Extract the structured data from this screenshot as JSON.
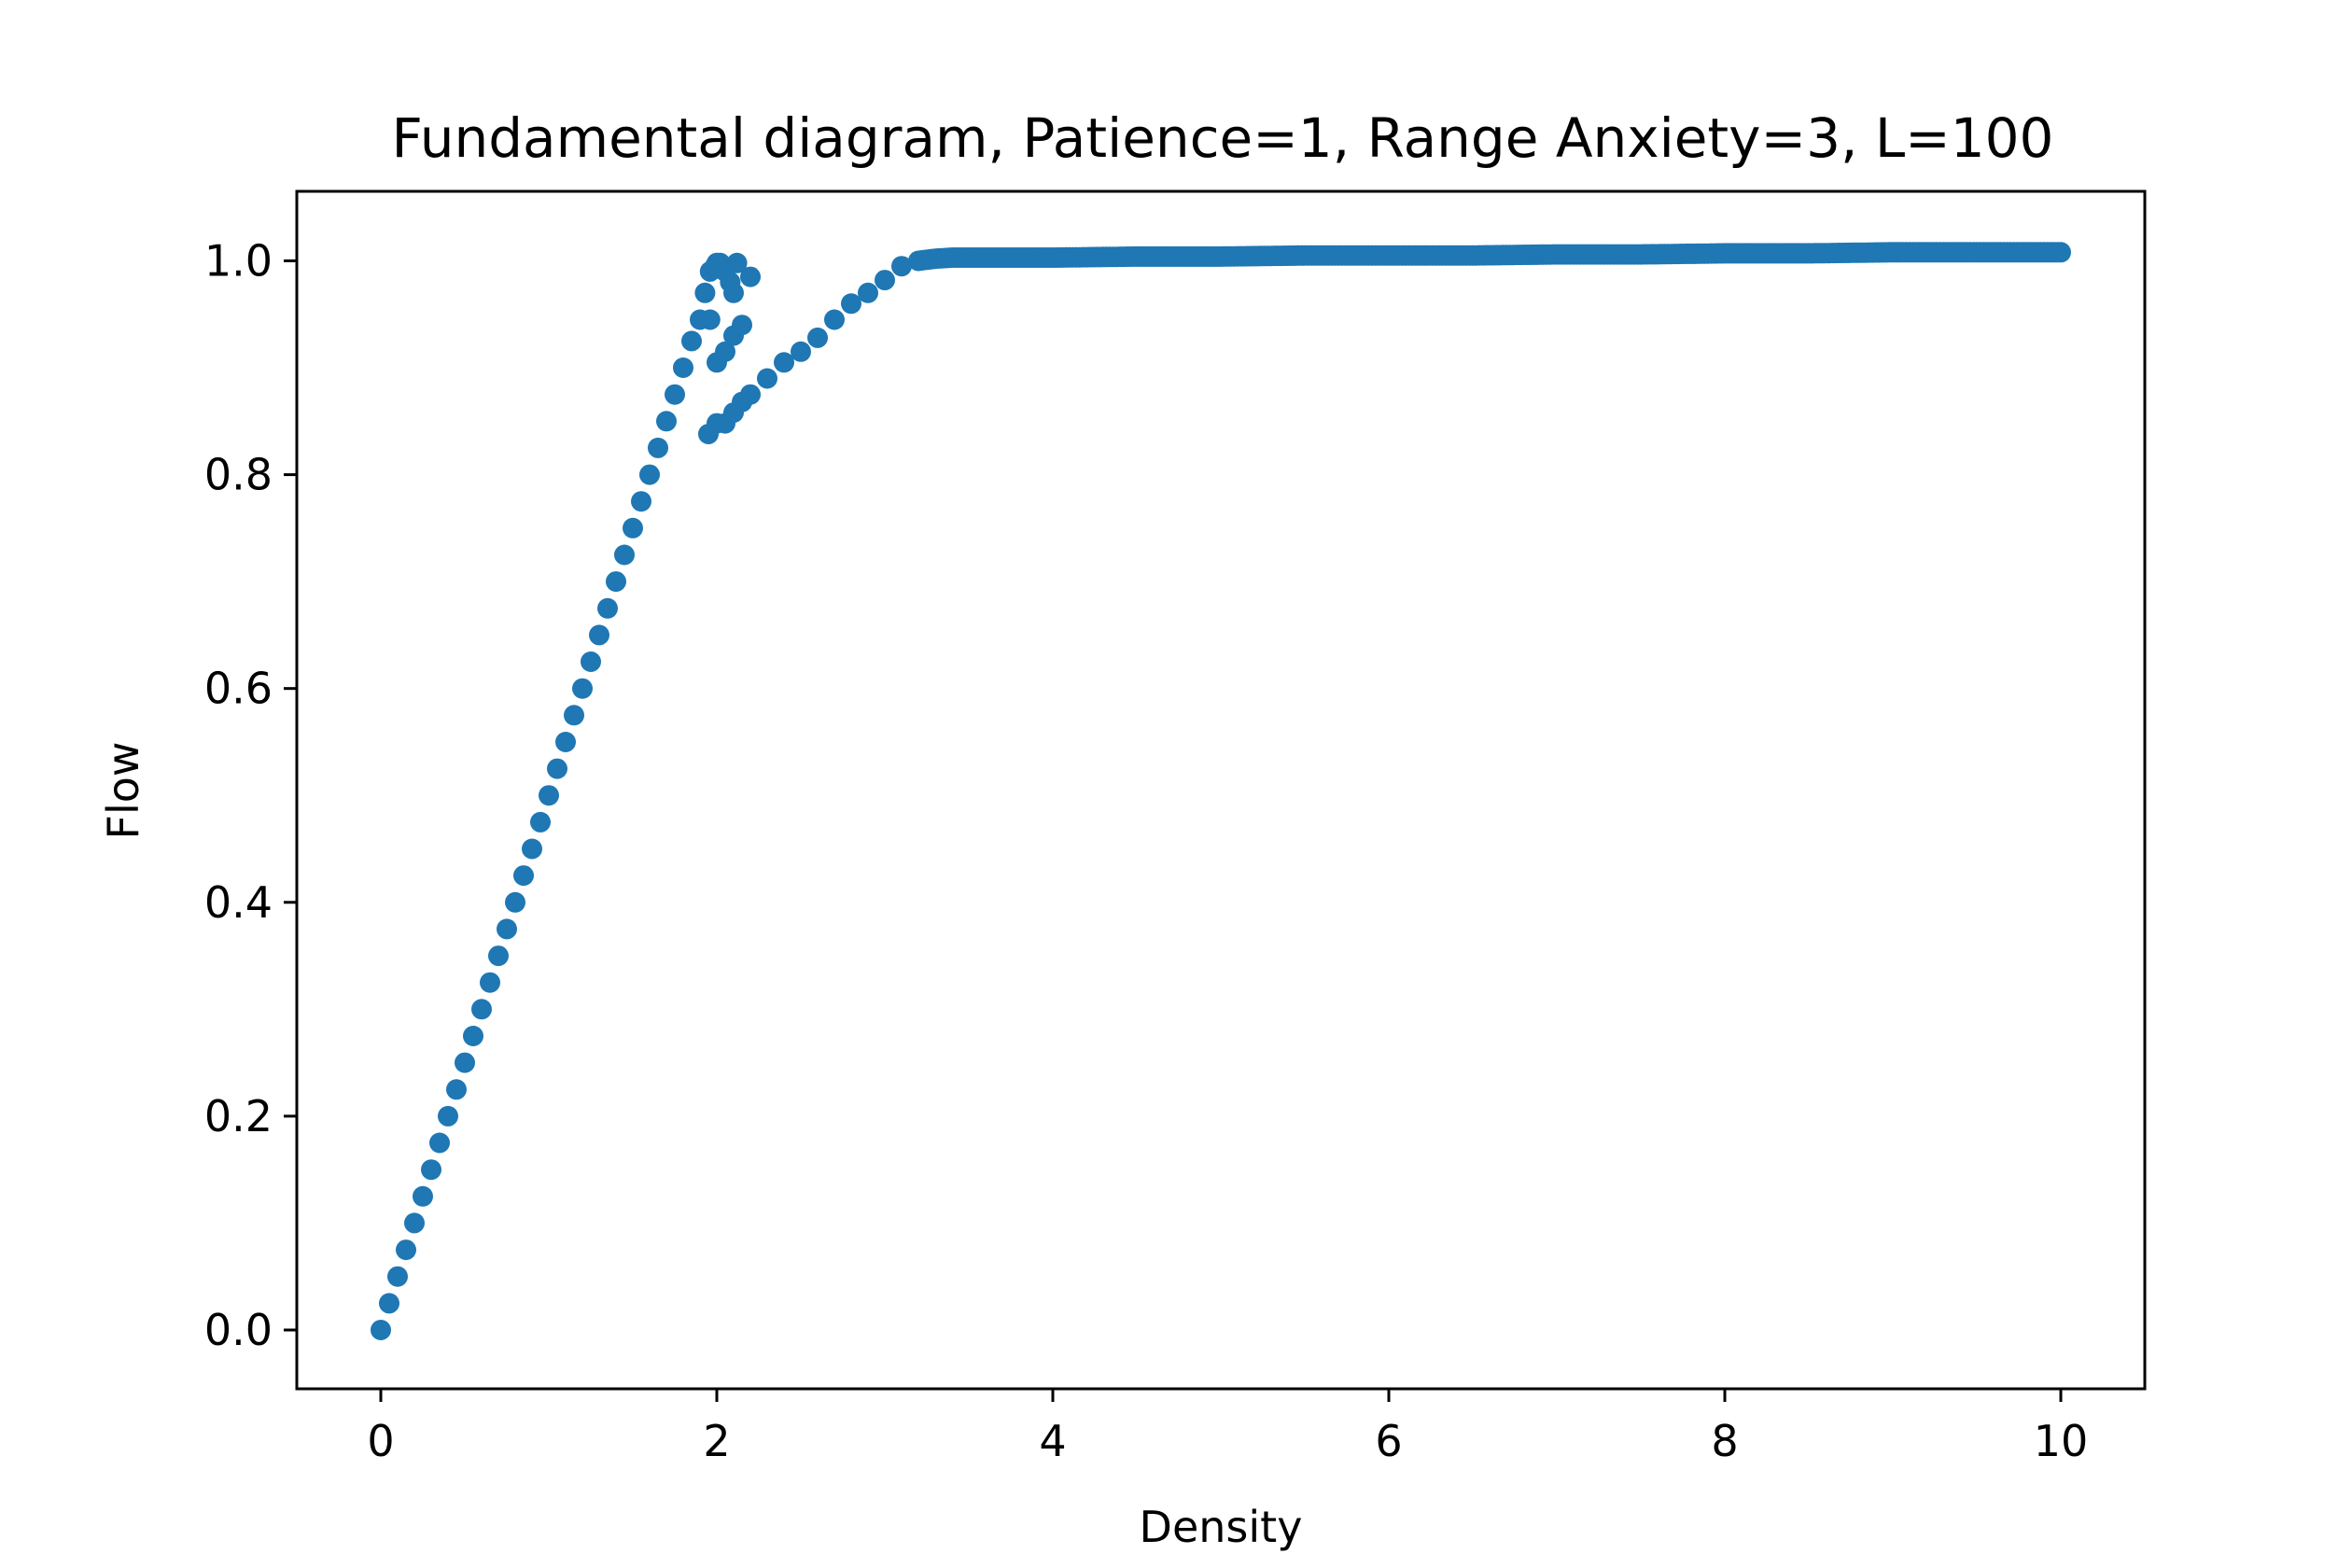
{
  "chart_data": {
    "type": "scatter",
    "title": "Fundamental diagram, Patience=1, Range Anxiety=3, L=100",
    "xlabel": "Density",
    "ylabel": "Flow",
    "xlim": [
      -0.5,
      10.5
    ],
    "ylim": [
      -0.055,
      1.065
    ],
    "xticks": [
      0,
      2,
      4,
      6,
      8,
      10
    ],
    "xtick_labels": [
      "0",
      "2",
      "4",
      "6",
      "8",
      "10"
    ],
    "yticks": [
      0.0,
      0.2,
      0.4,
      0.6,
      0.8,
      1.0
    ],
    "ytick_labels": [
      "0.0",
      "0.2",
      "0.4",
      "0.6",
      "0.8",
      "1.0"
    ],
    "grid": false,
    "color": "#1f77b4",
    "series": [
      {
        "x": [
          0,
          0.05,
          0.1,
          0.15,
          0.2,
          0.25,
          0.3,
          0.35,
          0.4,
          0.45,
          0.5,
          0.55,
          0.6,
          0.65,
          0.7,
          0.75,
          0.8,
          0.85,
          0.9,
          0.95,
          1.0,
          1.05,
          1.1,
          1.15,
          1.2,
          1.25,
          1.3,
          1.35,
          1.4,
          1.45,
          1.5,
          1.55,
          1.6,
          1.65,
          1.7,
          1.75,
          1.8,
          1.85,
          1.9,
          1.93,
          1.96,
          1.99,
          2.0,
          2.02,
          2.05,
          2.08,
          2.1,
          2.12,
          2.2,
          1.96,
          2.0,
          2.05,
          2.1,
          2.15,
          1.95,
          2.0,
          2.05,
          2.1,
          2.15,
          2.2,
          2.3,
          2.4,
          2.5,
          2.6,
          2.7,
          2.8,
          2.9,
          3.0,
          3.1,
          3.2,
          3.3,
          3.4,
          3.6,
          3.8,
          4.0,
          4.5,
          5.0,
          5.5,
          6.0,
          6.5,
          7.0,
          7.5,
          8.0,
          8.5,
          9.0,
          9.5,
          10.0
        ],
        "y": [
          0.0,
          0.025,
          0.05,
          0.075,
          0.1,
          0.125,
          0.15,
          0.175,
          0.2,
          0.225,
          0.25,
          0.275,
          0.3,
          0.325,
          0.35,
          0.375,
          0.4,
          0.425,
          0.45,
          0.475,
          0.5,
          0.525,
          0.55,
          0.575,
          0.6,
          0.625,
          0.65,
          0.675,
          0.7,
          0.725,
          0.75,
          0.775,
          0.8,
          0.825,
          0.85,
          0.875,
          0.9,
          0.925,
          0.945,
          0.97,
          0.99,
          0.995,
          0.998,
          0.998,
          0.99,
          0.98,
          0.97,
          0.998,
          0.985,
          0.945,
          0.905,
          0.915,
          0.93,
          0.94,
          0.838,
          0.848,
          0.848,
          0.858,
          0.868,
          0.875,
          0.89,
          0.905,
          0.915,
          0.928,
          0.945,
          0.96,
          0.97,
          0.982,
          0.995,
          1.0,
          1.002,
          1.003,
          1.003,
          1.003,
          1.003,
          1.004,
          1.004,
          1.005,
          1.005,
          1.005,
          1.006,
          1.006,
          1.007,
          1.007,
          1.008,
          1.008,
          1.008
        ]
      }
    ]
  }
}
